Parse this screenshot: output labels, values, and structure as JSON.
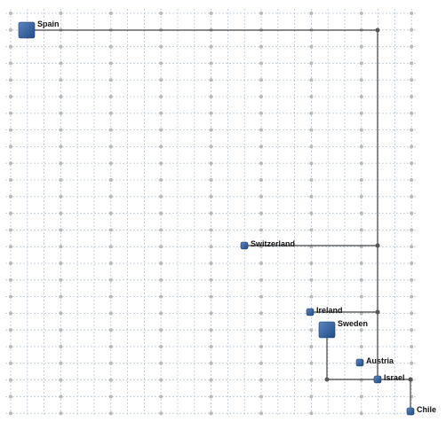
{
  "nodes": [
    {
      "label": "Spain"
    },
    {
      "label": "Switzerland"
    },
    {
      "label": "Ireland"
    },
    {
      "label": "Sweden"
    },
    {
      "label": "Austria"
    },
    {
      "label": "Israel"
    },
    {
      "label": "Chile"
    }
  ]
}
